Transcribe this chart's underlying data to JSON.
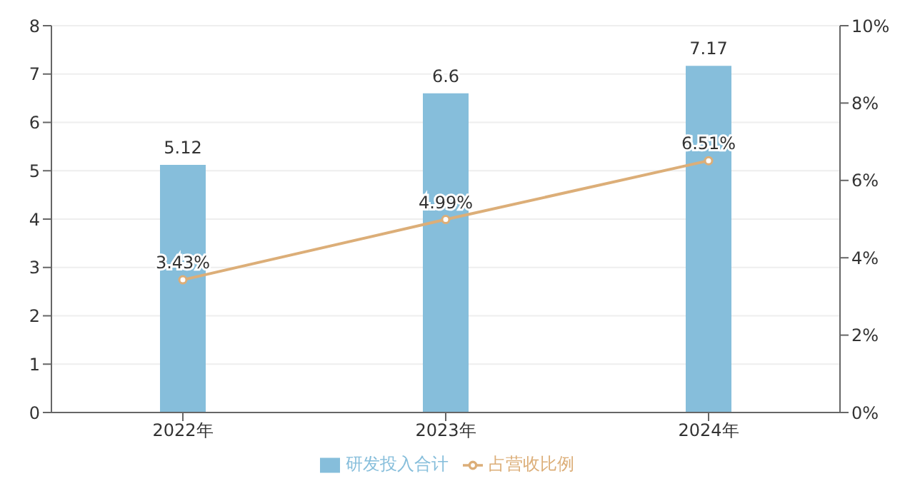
{
  "chart_data": {
    "type": "bar",
    "categories": [
      "2022年",
      "2023年",
      "2024年"
    ],
    "series": [
      {
        "name": "研发投入合计",
        "color": "#86bedb",
        "values": [
          5.12,
          6.6,
          7.17
        ],
        "value_labels": [
          "5.12",
          "6.6",
          "7.17"
        ]
      },
      {
        "name": "占营收比例",
        "type": "line",
        "axis": "y2",
        "color": "#dcae78",
        "values": [
          3.43,
          4.99,
          6.51
        ],
        "value_labels": [
          "3.43%",
          "4.99%",
          "6.51%"
        ]
      }
    ],
    "ylim": [
      0,
      8
    ],
    "yticks": [
      0,
      1,
      2,
      3,
      4,
      5,
      6,
      7,
      8
    ],
    "y2lim": [
      0,
      10
    ],
    "y2ticks": [
      {
        "value": 0,
        "label": "0%"
      },
      {
        "value": 2,
        "label": "2%"
      },
      {
        "value": 4,
        "label": "4%"
      },
      {
        "value": 6,
        "label": "6%"
      },
      {
        "value": 8,
        "label": "8%"
      },
      {
        "value": 10,
        "label": "10%"
      }
    ],
    "grid": "y",
    "legend": "bottom",
    "marker": "circle",
    "line_style": "solid"
  }
}
